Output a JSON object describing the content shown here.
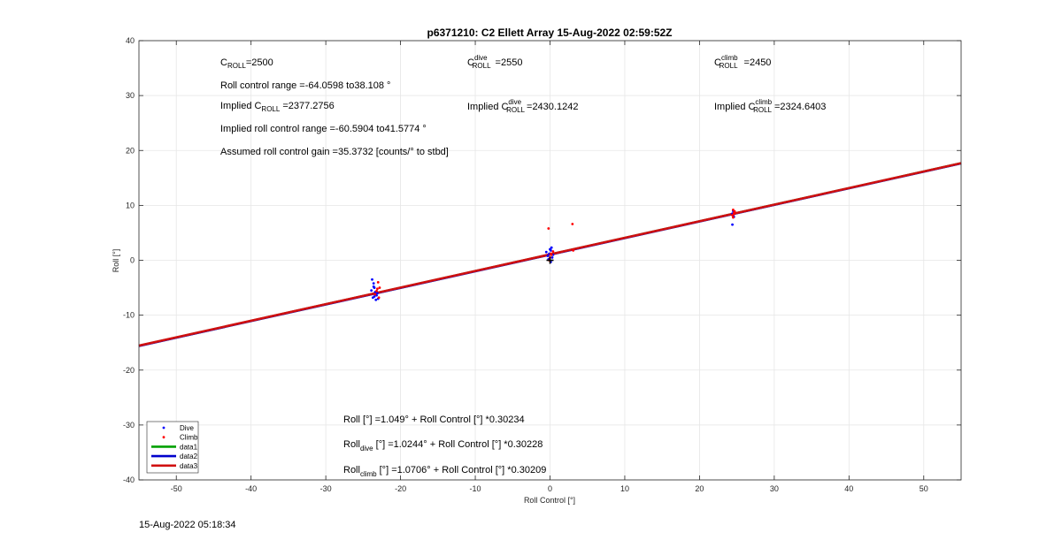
{
  "chart_data": {
    "type": "scatter",
    "title": "p6371210: C2 Ellett Array 15-Aug-2022 02:59:52Z",
    "xlabel": "Roll Control [°]",
    "ylabel": "Roll [°]",
    "xlim": [
      -55,
      55
    ],
    "ylim": [
      -40,
      40
    ],
    "xticks": [
      -50,
      -40,
      -30,
      -20,
      -10,
      0,
      10,
      20,
      30,
      40,
      50
    ],
    "yticks": [
      -40,
      -30,
      -20,
      -10,
      0,
      10,
      20,
      30,
      40
    ],
    "grid": true,
    "legend_position": "bottom-left",
    "legend": [
      "Dive",
      "Climb",
      "data1",
      "data2",
      "data3"
    ],
    "series": [
      {
        "name": "Dive",
        "kind": "points",
        "color": "#0000ff",
        "x": [
          -23.8,
          -23.6,
          -23.5,
          -23.4,
          -23.2,
          -23.0,
          -23.7,
          -23.3,
          -23.1,
          -23.9,
          -23.5,
          -23.6,
          -0.5,
          -0.3,
          -0.1,
          0.0,
          0.1,
          0.2,
          0.3,
          0.4,
          0.1,
          -0.2,
          24.4,
          24.5,
          24.6,
          24.5,
          24.4,
          24.6
        ],
        "y": [
          -3.5,
          -4.2,
          -5.0,
          -5.8,
          -6.4,
          -7.0,
          -6.8,
          -7.2,
          -6.0,
          -5.5,
          -6.6,
          -4.8,
          1.5,
          0.8,
          1.2,
          2.0,
          1.8,
          2.3,
          0.5,
          1.0,
          -0.3,
          0.2,
          6.5,
          8.2,
          8.8,
          9.0,
          8.5,
          7.9
        ]
      },
      {
        "name": "Climb",
        "kind": "points",
        "color": "#ff0000",
        "x": [
          -23.0,
          -22.8,
          -23.2,
          -23.4,
          -22.9,
          -23.1,
          -0.2,
          0.0,
          0.2,
          0.4,
          -0.1,
          0.1,
          3.0,
          3.1,
          24.5,
          24.6,
          24.7,
          24.5,
          24.6,
          24.4
        ],
        "y": [
          -4.0,
          -5.0,
          -5.6,
          -6.2,
          -6.8,
          -5.2,
          5.8,
          0.5,
          1.0,
          1.6,
          0.0,
          1.2,
          6.6,
          1.8,
          7.8,
          8.4,
          8.9,
          9.2,
          8.6,
          8.2
        ]
      },
      {
        "name": "data1",
        "kind": "fit",
        "color": "#00a000",
        "intercept": 1.049,
        "slope": 0.30234
      },
      {
        "name": "data2",
        "kind": "fit",
        "color": "#0000cc",
        "intercept": 1.0244,
        "slope": 0.30228
      },
      {
        "name": "data3",
        "kind": "fit",
        "color": "#d01010",
        "intercept": 1.0706,
        "slope": 0.30209
      }
    ],
    "marker": {
      "x": 0,
      "y": 0,
      "symbol": "+",
      "color": "#000000"
    },
    "annotations": {
      "c_roll": "=2500",
      "c_roll_dive": "=2550",
      "c_roll_climb": "=2450",
      "roll_control_range": "Roll control range =-64.0598 to38.108 °",
      "implied_c_roll": "=2377.2756",
      "implied_c_roll_dive": "=2430.1242",
      "implied_c_roll_climb": "=2324.6403",
      "implied_roll_control_range": "Implied roll control range =-60.5904 to41.5774 °",
      "assumed_gain": "Assumed roll control gain =35.3732 [counts/° to stbd]",
      "fit_all": "Roll [°] =1.049° + Roll Control [°] *0.30234",
      "fit_dive": "[°] =1.0244° + Roll Control [°] *0.30228",
      "fit_climb": "[°] =1.0706° + Roll Control [°] *0.30209",
      "labels": {
        "c": "C",
        "roll_sub": "ROLL",
        "dive_sup": "dive",
        "climb_sup": "climb",
        "implied": "Implied",
        "roll_word": "Roll",
        "dive_sub": "dive",
        "climb_sub": "climb"
      }
    }
  },
  "footer": {
    "timestamp": "15-Aug-2022 05:18:34"
  }
}
